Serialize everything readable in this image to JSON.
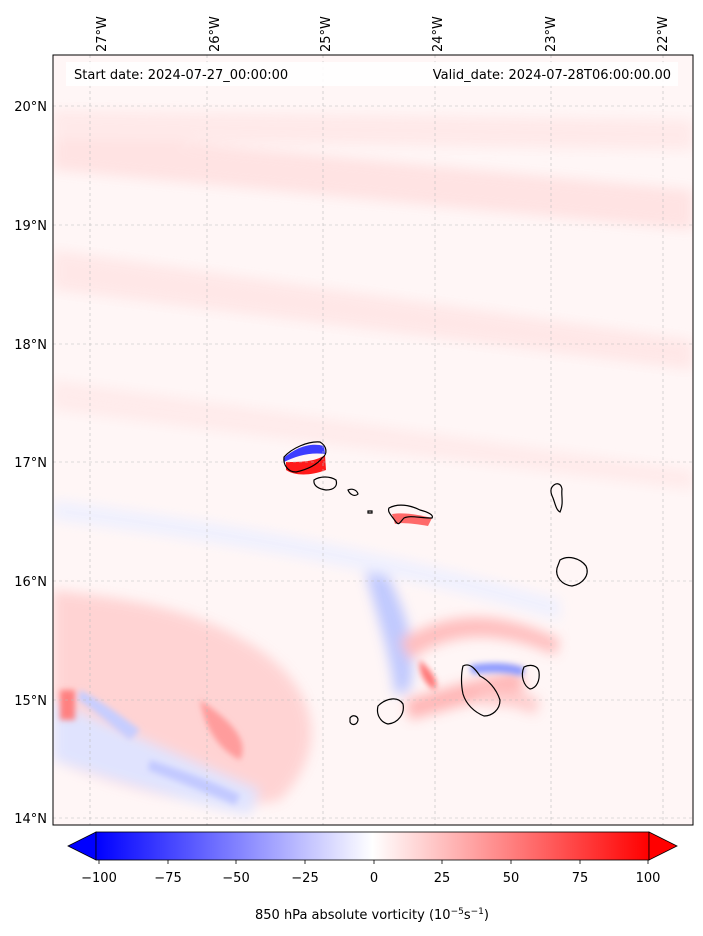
{
  "header": {
    "start_date": "Start date: 2024-07-27_00:00:00",
    "valid_date": "Valid_date: 2024-07-28T06:00:00.00"
  },
  "map": {
    "lon_range": [
      -27.4,
      -21.75
    ],
    "lat_range": [
      13.95,
      20.45
    ],
    "lon_ticks": [
      "27°W",
      "26°W",
      "25°W",
      "24°W",
      "23°W",
      "22°W"
    ],
    "lat_ticks": [
      "20°N",
      "19°N",
      "18°N",
      "17°N",
      "16°N",
      "15°N",
      "14°N"
    ],
    "gridlines": true,
    "field_color_positive": "#ff0000",
    "field_color_negative": "#0000ff"
  },
  "colorbar": {
    "label_main": "850 hPa absolute vorticity (10",
    "label_exp1": "−5",
    "label_mid": "s",
    "label_exp2": "−1",
    "label_end": ")",
    "min": -100,
    "max": 100,
    "extend": "both",
    "tick_labels": [
      "−100",
      "−75",
      "−50",
      "−25",
      "0",
      "25",
      "50",
      "75",
      "100"
    ]
  }
}
